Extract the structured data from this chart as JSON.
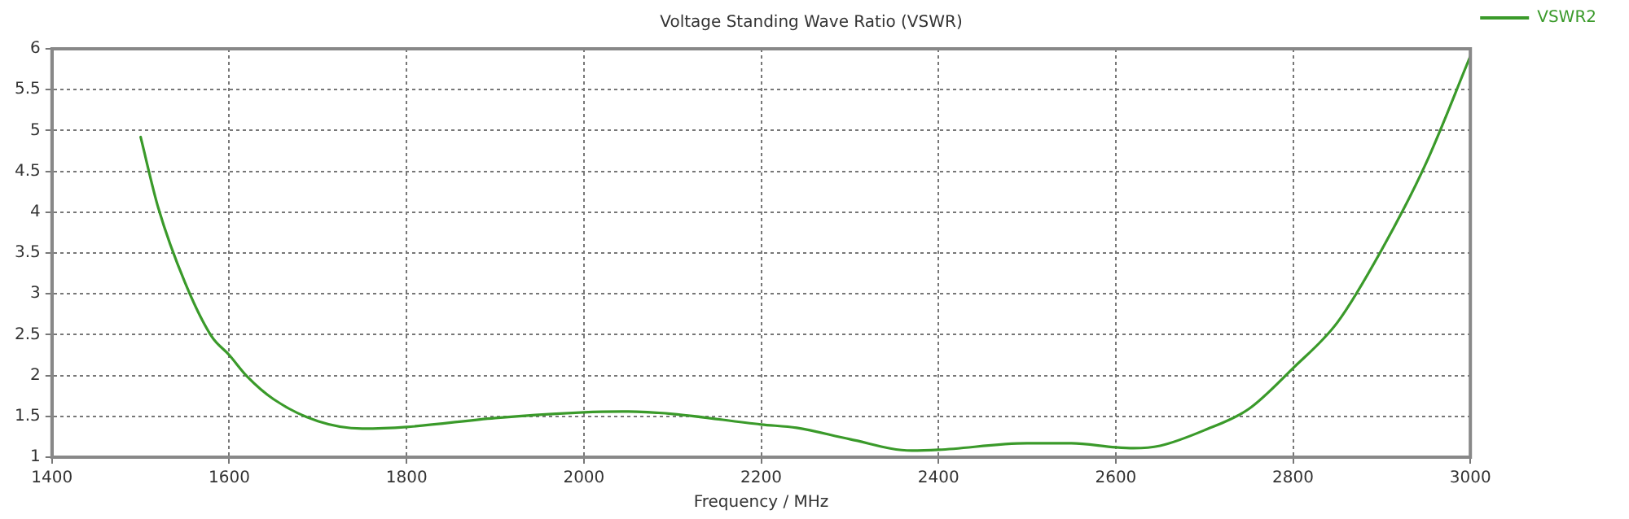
{
  "chart_data": {
    "type": "line",
    "title": "Voltage Standing Wave Ratio (VSWR)",
    "xlabel": "Frequency / MHz",
    "xlim": [
      1400,
      3000
    ],
    "xticks": [
      1400,
      1600,
      1800,
      2000,
      2200,
      2400,
      2600,
      2800,
      3000
    ],
    "ylim": [
      1,
      6
    ],
    "yticks": [
      1,
      1.5,
      2,
      2.5,
      3,
      3.5,
      4,
      4.5,
      5,
      5.5,
      6
    ],
    "grid": true,
    "legend": "right",
    "marker": "none",
    "line_style": "solid",
    "series": [
      {
        "name": "VSWR2",
        "color": "#3a9a2a",
        "x": [
          1500,
          1520,
          1550,
          1580,
          1600,
          1620,
          1650,
          1700,
          1750,
          1800,
          1900,
          2000,
          2050,
          2100,
          2200,
          2240,
          2300,
          2370,
          2400,
          2500,
          2550,
          2600,
          2620,
          2650,
          2700,
          2750,
          2800,
          2850,
          2900,
          2950,
          3000
        ],
        "values": [
          4.92,
          4.05,
          3.14,
          2.48,
          2.25,
          1.99,
          1.71,
          1.44,
          1.35,
          1.37,
          1.48,
          1.55,
          1.56,
          1.53,
          1.4,
          1.36,
          1.22,
          1.08,
          1.09,
          1.17,
          1.17,
          1.12,
          1.11,
          1.14,
          1.33,
          1.59,
          2.09,
          2.65,
          3.54,
          4.6,
          5.91
        ]
      }
    ]
  }
}
